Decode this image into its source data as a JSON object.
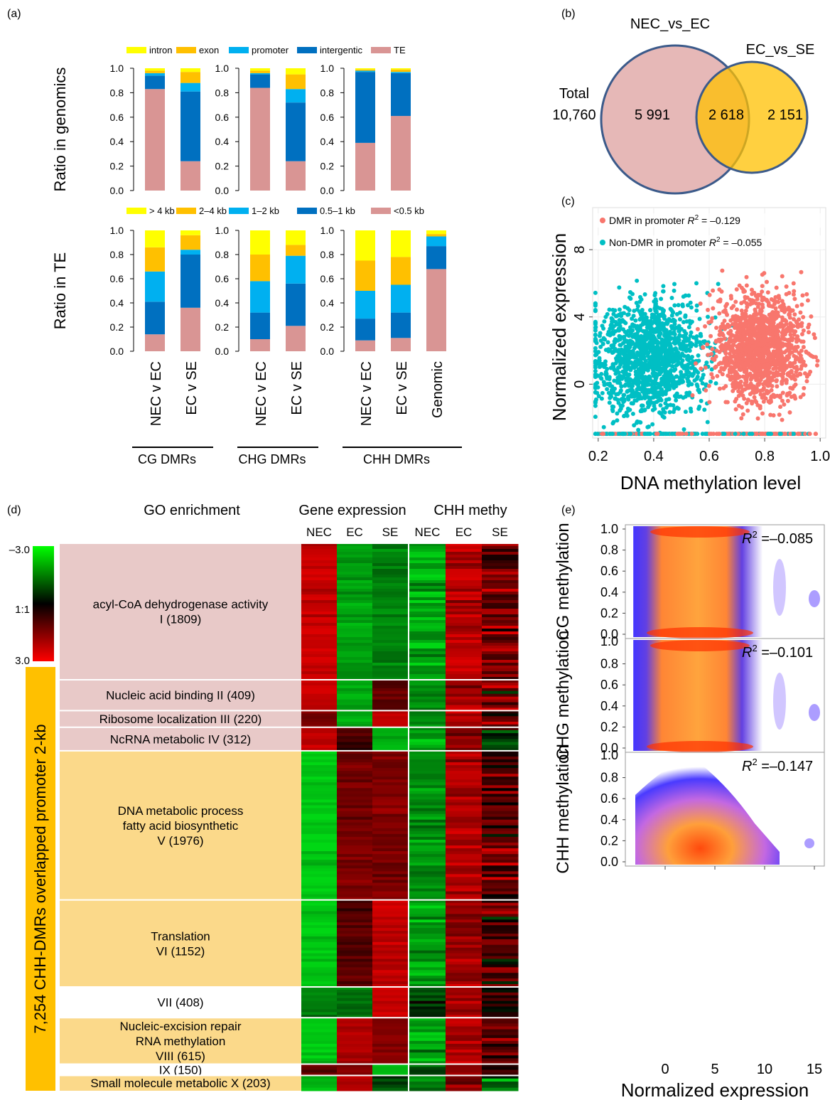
{
  "panels": {
    "a": "(a)",
    "b": "(b)",
    "c": "(c)",
    "d": "(d)",
    "e": "(e)"
  },
  "colors": {
    "yellow": "#ffff00",
    "orange": "#ffc000",
    "lightblue": "#00b0f0",
    "blue": "#0070c0",
    "pink": "#d99594",
    "venn_left": "#e6b8b7",
    "venn_right": "#ffc000",
    "venn_overlap": "#f0a33a",
    "venn_stroke": "#3b5a8a",
    "dmr": "#f8766d",
    "nondmr": "#00bfc4",
    "red": "#c00000",
    "green": "#00b050",
    "go_pink": "#e8c9c8",
    "go_yellow": "#fbd98a"
  },
  "chart_data": [
    {
      "id": "a_top",
      "type": "bar",
      "stacked": true,
      "ylabel": "Ratio in genomics",
      "ylim": [
        0,
        1
      ],
      "yticks": [
        "0.0",
        "0.2",
        "0.4",
        "0.6",
        "0.8",
        "1.0"
      ],
      "legend": [
        "intron",
        "exon",
        "promoter",
        "intergentic",
        "TE"
      ],
      "legend_colors": [
        "#ffff00",
        "#ffc000",
        "#00b0f0",
        "#0070c0",
        "#d99594"
      ],
      "groups": [
        {
          "name": "CG DMRs",
          "bars": [
            {
              "category": "NEC v EC",
              "TE": 0.83,
              "intergentic": 0.11,
              "promoter": 0.02,
              "exon": 0.02,
              "intron": 0.02
            },
            {
              "category": "EC  v SE",
              "TE": 0.24,
              "intergentic": 0.57,
              "promoter": 0.07,
              "exon": 0.09,
              "intron": 0.03
            }
          ]
        },
        {
          "name": "CHG DMRs",
          "bars": [
            {
              "category": "NEC v EC",
              "TE": 0.84,
              "intergentic": 0.11,
              "promoter": 0.01,
              "exon": 0.02,
              "intron": 0.02
            },
            {
              "category": "EC  v SE",
              "TE": 0.24,
              "intergentic": 0.48,
              "promoter": 0.11,
              "exon": 0.12,
              "intron": 0.05
            }
          ]
        },
        {
          "name": "CHH DMRs",
          "bars": [
            {
              "category": "NEC v EC",
              "TE": 0.39,
              "intergentic": 0.58,
              "promoter": 0.01,
              "exon": 0.01,
              "intron": 0.01
            },
            {
              "category": "EC  v SE",
              "TE": 0.61,
              "intergentic": 0.35,
              "promoter": 0.01,
              "exon": 0.02,
              "intron": 0.01
            }
          ]
        }
      ]
    },
    {
      "id": "a_bottom",
      "type": "bar",
      "stacked": true,
      "ylabel": "Ratio in TE",
      "ylim": [
        0,
        1
      ],
      "yticks": [
        "0.0",
        "0.2",
        "0.4",
        "0.6",
        "0.8",
        "1.0"
      ],
      "legend": [
        "> 4 kb",
        "2–4 kb",
        "1–2 kb",
        "0.5–1 kb",
        "<0.5 kb"
      ],
      "legend_colors": [
        "#ffff00",
        "#ffc000",
        "#00b0f0",
        "#0070c0",
        "#d99594"
      ],
      "groups": [
        {
          "name": "CG DMRs",
          "bars": [
            {
              "category": "NEC v EC",
              "<0.5 kb": 0.14,
              "0.5–1 kb": 0.27,
              "1–2 kb": 0.25,
              "2–4 kb": 0.2,
              "> 4 kb": 0.14
            },
            {
              "category": "EC  v SE",
              "<0.5 kb": 0.36,
              "0.5–1 kb": 0.44,
              "1–2 kb": 0.04,
              "2–4 kb": 0.12,
              "> 4 kb": 0.04
            }
          ]
        },
        {
          "name": "CHG DMRs",
          "bars": [
            {
              "category": "NEC v EC",
              "<0.5 kb": 0.1,
              "0.5–1 kb": 0.22,
              "1–2 kb": 0.26,
              "2–4 kb": 0.22,
              "> 4 kb": 0.2
            },
            {
              "category": "EC  v SE",
              "<0.5 kb": 0.21,
              "0.5–1 kb": 0.35,
              "1–2 kb": 0.23,
              "2–4 kb": 0.09,
              "> 4 kb": 0.12
            }
          ]
        },
        {
          "name": "CHH DMRs",
          "bars": [
            {
              "category": "NEC v EC",
              "<0.5 kb": 0.09,
              "0.5–1 kb": 0.18,
              "1–2 kb": 0.23,
              "2–4 kb": 0.25,
              "> 4 kb": 0.25
            },
            {
              "category": "EC  v SE",
              "<0.5 kb": 0.11,
              "0.5–1 kb": 0.21,
              "1–2 kb": 0.23,
              "2–4 kb": 0.23,
              "> 4 kb": 0.22
            },
            {
              "category": "Genomic",
              "<0.5 kb": 0.68,
              "0.5–1 kb": 0.19,
              "1–2 kb": 0.08,
              "2–4 kb": 0.02,
              "> 4 kb": 0.03
            }
          ]
        }
      ]
    },
    {
      "id": "b",
      "type": "venn",
      "sets": [
        "NEC_vs_EC",
        "EC_vs_SE"
      ],
      "total_label": "Total",
      "total_value": "10,760",
      "regions": {
        "left_only": "5 991",
        "overlap": "2 618",
        "right_only": "2 151"
      }
    },
    {
      "id": "c",
      "type": "scatter",
      "xlabel": "DNA methylation level",
      "ylabel": "Normalized expression",
      "xlim": [
        0.18,
        1.02
      ],
      "ylim": [
        -3.2,
        10.5
      ],
      "xticks": [
        "0.2",
        "0.4",
        "0.6",
        "0.8",
        "1.0"
      ],
      "yticks": [
        "0",
        "4",
        "8"
      ],
      "series": [
        {
          "name": "DMR in promoter",
          "r2": "= –0.129",
          "color": "#f8766d",
          "x_center": 0.78,
          "x_spread": 0.11,
          "y_center": 2.2,
          "y_spread": 2.2
        },
        {
          "name": "Non-DMR in promoter",
          "r2": "= –0.055",
          "color": "#00bfc4",
          "x_center": 0.38,
          "x_spread": 0.14,
          "y_center": 1.6,
          "y_spread": 2.4
        }
      ]
    },
    {
      "id": "d",
      "type": "heatmap",
      "header_go": "GO enrichment",
      "header_expr": "Gene expression",
      "header_meth": "CHH methy",
      "columns_expr": [
        "NEC",
        "EC",
        "SE"
      ],
      "columns_meth": [
        "NEC",
        "EC",
        "SE"
      ],
      "scale_labels": [
        "–3.0",
        "1:1",
        "3.0"
      ],
      "side_label": "7,254 CHH-DMRs overlapped promoter 2-kb",
      "clusters": [
        {
          "label": [
            "acyl-CoA dehydrogenase activity",
            "I (1809)"
          ],
          "size": 1809,
          "bg": "pink",
          "expr": [
            2.8,
            -2.2,
            -1.8
          ],
          "meth": [
            -2.4,
            2.5,
            1.6
          ]
        },
        {
          "label": [
            "Nucleic acid binding II (409)"
          ],
          "size": 409,
          "bg": "pink",
          "expr": [
            2.6,
            -2.4,
            1.2
          ],
          "meth": [
            -2.0,
            2.2,
            1.5
          ]
        },
        {
          "label": [
            "Ribosome localization III (220)"
          ],
          "size": 220,
          "bg": "pink",
          "expr": [
            1.5,
            -2.5,
            2.7
          ],
          "meth": [
            -1.8,
            2.4,
            0.8
          ]
        },
        {
          "label": [
            "NcRNA metabolic IV (312)"
          ],
          "size": 312,
          "bg": "pink",
          "expr": [
            2.7,
            0.8,
            -2.6
          ],
          "meth": [
            -2.2,
            1.8,
            -0.6
          ]
        },
        {
          "label": [
            "DNA metabolic process",
            "fatty acid biosynthetic",
            "V (1976)"
          ],
          "size": 1976,
          "bg": "yellow",
          "expr": [
            -2.8,
            1.6,
            1.7
          ],
          "meth": [
            -2.0,
            2.4,
            1.2
          ]
        },
        {
          "label": [
            "Translation",
            "VI (1152)"
          ],
          "size": 1152,
          "bg": "yellow",
          "expr": [
            -2.8,
            1.2,
            2.6
          ],
          "meth": [
            -2.1,
            2.0,
            1.0
          ]
        },
        {
          "label": [
            "VII (408)"
          ],
          "size": 408,
          "bg": "white",
          "expr": [
            -1.8,
            -1.6,
            2.7
          ],
          "meth": [
            -0.6,
            2.2,
            0.4
          ]
        },
        {
          "label": [
            "Nucleic-excision repair",
            "RNA methylation",
            "VIII (615)"
          ],
          "size": 615,
          "bg": "yellow",
          "expr": [
            -2.7,
            2.4,
            1.8
          ],
          "meth": [
            -2.3,
            2.2,
            1.2
          ]
        },
        {
          "label": [
            "IX (150)"
          ],
          "size": 150,
          "bg": "white",
          "expr": [
            1.2,
            2.0,
            -2.6
          ],
          "meth": [
            -1.2,
            2.0,
            -0.4
          ]
        },
        {
          "label": [
            "Small molecule metabolic X (203)"
          ],
          "size": 203,
          "bg": "yellow",
          "expr": [
            -2.4,
            2.6,
            -1.0
          ],
          "meth": [
            -2.0,
            1.6,
            -0.8
          ]
        }
      ]
    },
    {
      "id": "e",
      "type": "density",
      "xlabel": "Normalized expression",
      "xlim": [
        -4,
        16
      ],
      "xticks": [
        "0",
        "5",
        "10",
        "15"
      ],
      "yticks": [
        "0.0",
        "0.2",
        "0.4",
        "0.6",
        "0.8",
        "1.0"
      ],
      "panels": [
        {
          "ylabel": "CG methylation",
          "r2": " =–0.085"
        },
        {
          "ylabel": "CHG methylation",
          "r2": " =–0.101"
        },
        {
          "ylabel": "CHH methylation",
          "r2": " =–0.147"
        }
      ]
    }
  ]
}
